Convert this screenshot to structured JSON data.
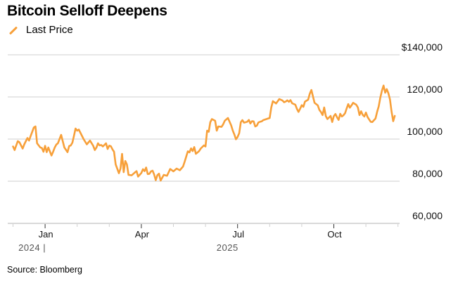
{
  "chart_data": {
    "type": "line",
    "title": "Bitcoin Selloff Deepens",
    "legend": [
      {
        "name": "Last Price",
        "color": "#f7a03a"
      }
    ],
    "legend_position": "top-left",
    "ylabel": "",
    "xlabel": "",
    "ylim": [
      60000,
      140000
    ],
    "yticks": [
      {
        "value": 140000,
        "label": "$140,000"
      },
      {
        "value": 120000,
        "label": "120,000"
      },
      {
        "value": 100000,
        "label": "100,000"
      },
      {
        "value": 80000,
        "label": "80,000"
      },
      {
        "value": 60000,
        "label": "60,000"
      }
    ],
    "grid": true,
    "xlim_months": [
      -0.15,
      11.95
    ],
    "xticks_major": [
      {
        "month": 1,
        "label": "Jan"
      },
      {
        "month": 4,
        "label": "Apr"
      },
      {
        "month": 7,
        "label": "Jul"
      },
      {
        "month": 10,
        "label": "Oct"
      }
    ],
    "xticks_minor_months": [
      0,
      2,
      3,
      5,
      6,
      8,
      9,
      11,
      12
    ],
    "year_labels": [
      {
        "month": 1,
        "label": "2024 |"
      },
      {
        "month": 7,
        "label": "2025"
      }
    ],
    "series": [
      {
        "name": "Last Price",
        "color": "#f7a03a",
        "x_month": [
          0.0,
          0.05,
          0.1,
          0.15,
          0.2,
          0.3,
          0.35,
          0.45,
          0.5,
          0.55,
          0.65,
          0.7,
          0.75,
          0.85,
          0.9,
          0.95,
          1.0,
          1.05,
          1.1,
          1.2,
          1.25,
          1.3,
          1.35,
          1.4,
          1.5,
          1.55,
          1.6,
          1.7,
          1.75,
          1.8,
          1.85,
          1.9,
          1.95,
          2.0,
          2.05,
          2.1,
          2.2,
          2.3,
          2.4,
          2.5,
          2.55,
          2.6,
          2.65,
          2.7,
          2.75,
          2.8,
          2.9,
          2.95,
          3.0,
          3.05,
          3.1,
          3.15,
          3.2,
          3.3,
          3.35,
          3.4,
          3.45,
          3.5,
          3.55,
          3.6,
          3.7,
          3.8,
          3.85,
          3.9,
          4.0,
          4.05,
          4.1,
          4.15,
          4.2,
          4.25,
          4.3,
          4.35,
          4.4,
          4.45,
          4.5,
          4.55,
          4.6,
          4.7,
          4.8,
          4.9,
          5.0,
          5.1,
          5.2,
          5.3,
          5.35,
          5.45,
          5.5,
          5.55,
          5.6,
          5.65,
          5.7,
          5.8,
          5.85,
          5.95,
          6.0,
          6.05,
          6.1,
          6.15,
          6.2,
          6.3,
          6.35,
          6.4,
          6.5,
          6.55,
          6.6,
          6.7,
          6.8,
          6.85,
          6.9,
          6.95,
          7.0,
          7.05,
          7.1,
          7.15,
          7.2,
          7.3,
          7.35,
          7.4,
          7.45,
          7.5,
          7.55,
          7.6,
          7.65,
          7.7,
          7.75,
          7.8,
          7.9,
          8.0,
          8.05,
          8.1,
          8.2,
          8.3,
          8.4,
          8.45,
          8.5,
          8.55,
          8.6,
          8.65,
          8.7,
          8.8,
          8.85,
          8.9,
          8.95,
          9.0,
          9.05,
          9.1,
          9.2,
          9.25,
          9.3,
          9.4,
          9.5,
          9.55,
          9.6,
          9.65,
          9.7,
          9.75,
          9.8,
          9.9,
          9.95,
          10.0,
          10.05,
          10.1,
          10.15,
          10.2,
          10.25,
          10.3,
          10.35,
          10.4,
          10.45,
          10.5,
          10.55,
          10.6,
          10.7,
          10.75,
          10.8,
          10.85,
          10.9,
          10.95,
          11.0,
          11.05,
          11.1,
          11.15,
          11.2,
          11.3,
          11.35,
          11.4,
          11.45,
          11.5,
          11.55,
          11.6,
          11.65,
          11.7,
          11.75,
          11.8,
          11.85,
          11.9
        ],
        "y": [
          96500,
          94800,
          97000,
          99000,
          98500,
          95500,
          97500,
          100500,
          99300,
          101500,
          105500,
          106000,
          98000,
          96000,
          95800,
          94000,
          96800,
          93800,
          96000,
          92200,
          94000,
          96000,
          97400,
          98000,
          102000,
          99000,
          96000,
          93800,
          96700,
          97000,
          98300,
          101500,
          105000,
          104000,
          104500,
          103000,
          100000,
          97500,
          99300,
          96800,
          94800,
          96000,
          98000,
          97000,
          97200,
          96500,
          98000,
          95300,
          96900,
          96600,
          95100,
          94000,
          88000,
          83800,
          86000,
          93000,
          84300,
          89600,
          88000,
          83000,
          82800,
          84200,
          84800,
          82200,
          83900,
          85700,
          84800,
          86500,
          83400,
          83500,
          84700,
          85000,
          83200,
          80500,
          82900,
          83600,
          80300,
          83000,
          82600,
          85800,
          84700,
          86000,
          85200,
          87000,
          89300,
          94200,
          93700,
          95600,
          94300,
          96200,
          93000,
          94300,
          95500,
          97000,
          96500,
          104000,
          103500,
          108000,
          109500,
          108700,
          104000,
          106000,
          105800,
          107000,
          108700,
          110000,
          106500,
          104000,
          102200,
          99900,
          101000,
          102800,
          108000,
          109000,
          107800,
          108200,
          109100,
          107400,
          108500,
          108400,
          106000,
          106400,
          107900,
          108200,
          108400,
          109000,
          109500,
          110000,
          115000,
          118000,
          116900,
          119000,
          118300,
          117500,
          117800,
          118400,
          117700,
          118500,
          117000,
          116300,
          114300,
          112900,
          114400,
          116100,
          115300,
          117800,
          118700,
          121500,
          123300,
          117200,
          116000,
          113800,
          112800,
          111400,
          115000,
          110900,
          109500,
          111000,
          108100,
          110900,
          111900,
          110300,
          109100,
          112000,
          110700,
          111300,
          112300,
          114500,
          116600,
          114900,
          116000,
          117200,
          116300,
          115000,
          111400,
          113200,
          111500,
          110700,
          112600,
          110500,
          109300,
          108200,
          108100,
          109800,
          113000,
          115500,
          119700,
          123000,
          125400,
          122000,
          123700,
          121800,
          118800,
          113000,
          108500,
          111000,
          113500,
          112000,
          110500,
          107800,
          106800,
          103800,
          101700,
          103500,
          107500,
          109800,
          111100,
          113800,
          114400,
          112300,
          110900,
          110600,
          108100,
          104100,
          102800,
          105800,
          104500,
          103700,
          103200,
          104300,
          106000,
          103500,
          101000,
          98600,
          96700,
          95000,
          94600,
          92300,
          89500,
          86800,
          84000,
          86100,
          87000,
          86200,
          91500,
          90000,
          90800,
          84900
        ]
      }
    ]
  },
  "legend_label": "Last Price",
  "source": "Source: Bloomberg"
}
